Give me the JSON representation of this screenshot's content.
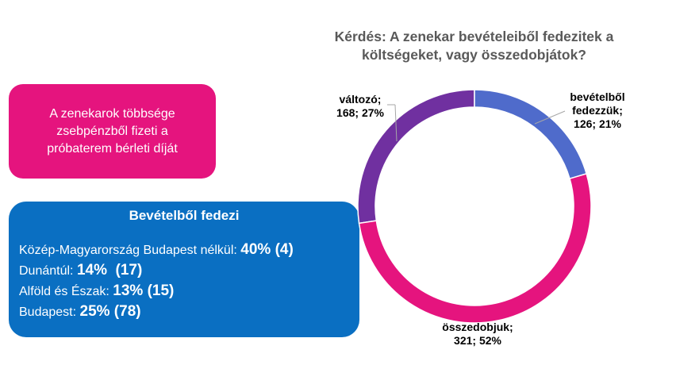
{
  "callout": {
    "text": "A zenekarok többsége zsebpénzből fizeti a próbaterem bérleti díját"
  },
  "summary": {
    "title": "Bevételből fedezi",
    "rows": [
      {
        "label": "Közép-Magyarország Budapest nélkül: ",
        "value": "40% (4)"
      },
      {
        "label": "Dunántúl: ",
        "value": "14%  (17)"
      },
      {
        "label": "Alföld és Észak: ",
        "value": "13% (15)"
      },
      {
        "label": "Budapest: ",
        "value": "25% (78)"
      }
    ]
  },
  "chart_data": {
    "type": "pie",
    "subtype": "donut",
    "title": "Kérdés: A zenekar bevételeiből fedezitek a költségeket, vagy összedobjátok?",
    "slices": [
      {
        "name": "bevételből fedezzük",
        "value": 126,
        "percent": 21,
        "color": "#4f6bcb",
        "label_line1": "bevételből",
        "label_line2": "fedezzük;",
        "label_line3": "126; 21%"
      },
      {
        "name": "összedobjuk",
        "value": 321,
        "percent": 52,
        "color": "#e5147e",
        "label_line1": "összedobjuk;",
        "label_line2": "321; 52%"
      },
      {
        "name": "változó",
        "value": 168,
        "percent": 27,
        "color": "#7030a0",
        "label_line1": "változó;",
        "label_line2": "168; 27%"
      }
    ]
  }
}
